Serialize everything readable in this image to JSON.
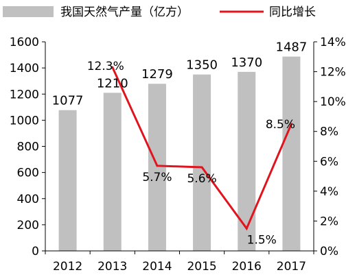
{
  "chart_data": {
    "type": "bar",
    "categories": [
      "2012",
      "2013",
      "2014",
      "2015",
      "2016",
      "2017"
    ],
    "series": [
      {
        "name": "我国天然气产量（亿方）",
        "type": "bar",
        "axis": "left",
        "values": [
          1077,
          1210,
          1279,
          1350,
          1370,
          1487
        ],
        "labels": [
          "1077",
          "1210",
          "1279",
          "1350",
          "1370",
          "1487"
        ]
      },
      {
        "name": "同比增长",
        "type": "line",
        "axis": "right",
        "values": [
          12.3,
          5.7,
          5.6,
          1.5,
          8.5
        ],
        "x": [
          "2013",
          "2014",
          "2015",
          "2016",
          "2017"
        ],
        "labels": [
          "12.3%",
          "5.7%",
          "5.6%",
          "1.5%",
          "8.5%"
        ]
      }
    ],
    "y_left": {
      "ylim": [
        0,
        1600
      ],
      "ticks": [
        "0",
        "200",
        "400",
        "600",
        "800",
        "1000",
        "1200",
        "1400",
        "1600"
      ]
    },
    "y_right": {
      "ylim": [
        0,
        14
      ],
      "ticks": [
        "0%",
        "2%",
        "4%",
        "6%",
        "8%",
        "10%",
        "12%",
        "14%"
      ]
    },
    "legend_position": "top",
    "grid": false,
    "colors": {
      "bar": "#c0c0c0",
      "line": "#e0141e",
      "axis": "#000000"
    }
  }
}
